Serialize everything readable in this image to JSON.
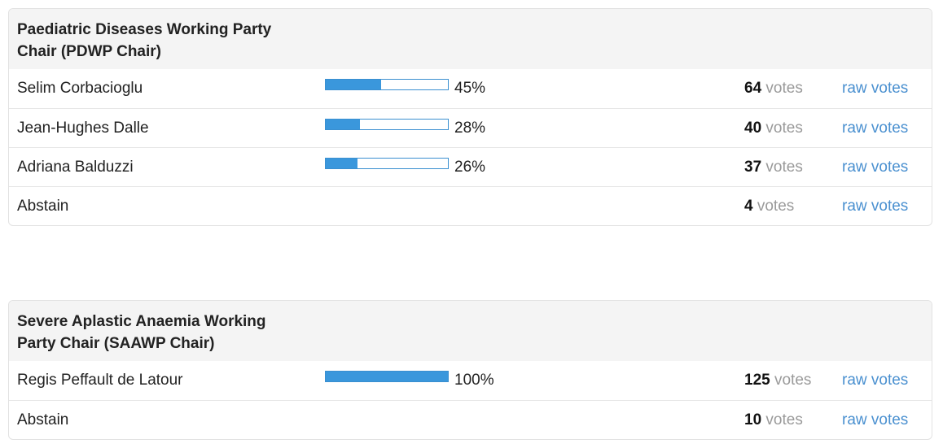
{
  "polls": [
    {
      "title": "Paediatric Diseases Working Party Chair (PDWP Chair)",
      "rows": [
        {
          "name": "Selim Corbacioglu",
          "percent": 45,
          "percent_label": "45%",
          "votes": 64,
          "votes_label": "votes",
          "link": "raw votes"
        },
        {
          "name": "Jean-Hughes Dalle",
          "percent": 28,
          "percent_label": "28%",
          "votes": 40,
          "votes_label": "votes",
          "link": "raw votes"
        },
        {
          "name": "Adriana Balduzzi",
          "percent": 26,
          "percent_label": "26%",
          "votes": 37,
          "votes_label": "votes",
          "link": "raw votes"
        },
        {
          "name": "Abstain",
          "votes": 4,
          "votes_label": "votes",
          "link": "raw votes"
        }
      ]
    },
    {
      "title": "Severe Aplastic Anaemia Working Party Chair (SAAWP Chair)",
      "rows": [
        {
          "name": "Regis Peffault de Latour",
          "percent": 100,
          "percent_label": "100%",
          "votes": 125,
          "votes_label": "votes",
          "link": "raw votes"
        },
        {
          "name": "Abstain",
          "votes": 10,
          "votes_label": "votes",
          "link": "raw votes"
        }
      ]
    }
  ]
}
